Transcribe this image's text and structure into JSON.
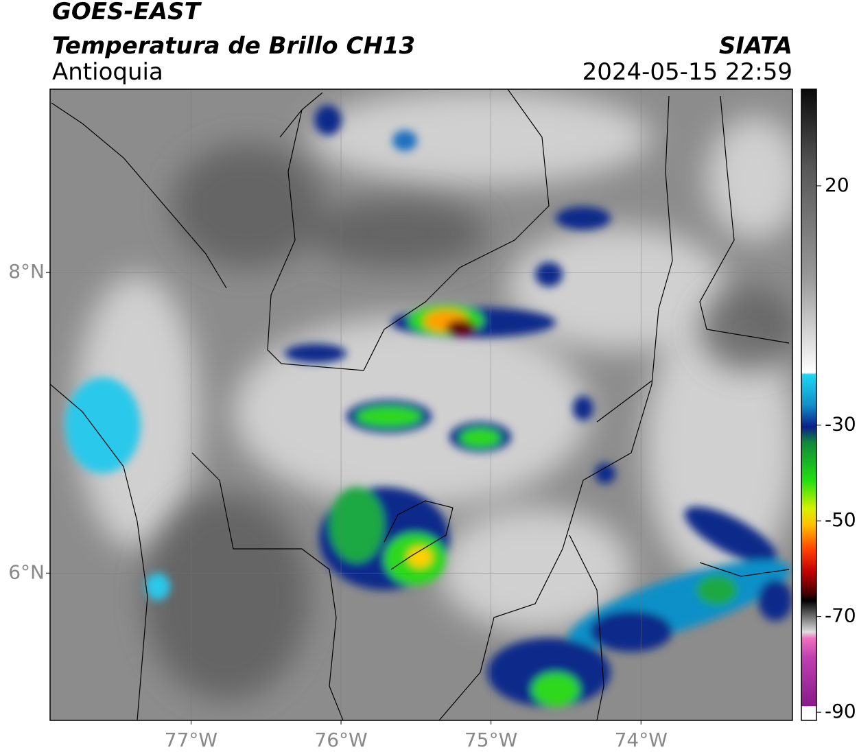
{
  "header": {
    "title": "GOES-EAST",
    "subtitle": "Temperatura de Brillo CH13",
    "region": "Antioquia",
    "source": "SIATA",
    "datetime": "2024-05-15 22:59"
  },
  "map": {
    "xlim": [
      -77.94,
      -72.99
    ],
    "ylim": [
      5.02,
      9.22
    ],
    "xticks": [
      {
        "value": -77,
        "label": "77°W"
      },
      {
        "value": -76,
        "label": "76°W"
      },
      {
        "value": -75,
        "label": "75°W"
      },
      {
        "value": -74,
        "label": "74°W"
      }
    ],
    "yticks": [
      {
        "value": 8,
        "label": "8°N"
      },
      {
        "value": 6,
        "label": "6°N"
      }
    ],
    "grid": true
  },
  "colorbar": {
    "lim": [
      -91.7,
      40.2
    ],
    "ticks": [
      20,
      -30,
      -50,
      -70,
      -90
    ]
  }
}
